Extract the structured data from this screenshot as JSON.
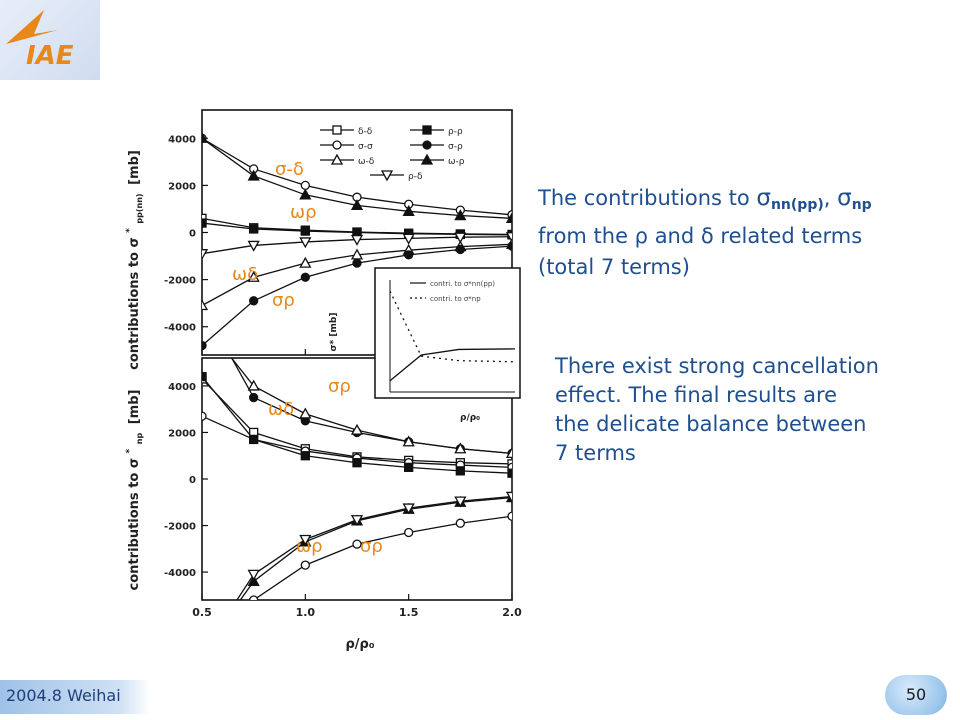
{
  "logo": {
    "text": "IAE",
    "brand_color": "#e8871a"
  },
  "figure": {
    "top_panel": {
      "ylabel_prefix": "contributions to σ",
      "ylabel_sup": "*",
      "ylabel_sub": "pp(nn)",
      "ylabel_unit": "[mb]",
      "yticks": [
        "4000",
        "2000",
        "0",
        "-2000",
        "-4000"
      ]
    },
    "bottom_panel": {
      "ylabel_prefix": "contributions to σ",
      "ylabel_sup": "*",
      "ylabel_sub": "np",
      "ylabel_unit": "[mb]",
      "yticks": [
        "4000",
        "2000",
        "0",
        "-2000",
        "-4000"
      ]
    },
    "xticks": [
      "0.5",
      "1.0",
      "1.5",
      "2.0"
    ],
    "xlabel": "ρ/ρ₀",
    "legend": [
      {
        "label": "δ-δ",
        "marker": "square-open"
      },
      {
        "label": "ρ-ρ",
        "marker": "square-filled"
      },
      {
        "label": "σ-σ",
        "marker": "circle-open"
      },
      {
        "label": "σ-ρ",
        "marker": "circle-filled"
      },
      {
        "label": "ω-δ",
        "marker": "triangle-open"
      },
      {
        "label": "ω-ρ",
        "marker": "triangle-filled"
      },
      {
        "label": "ρ-δ",
        "marker": "triangle-down-open"
      }
    ],
    "annotations": {
      "top_sd": "σ-δ",
      "top_wr": "ωρ",
      "top_wd": "ωδ",
      "top_sr": "σρ",
      "bot_sr": "σρ",
      "bot_wd": "ωδ",
      "bot_wr2": "ωρ",
      "bot_sr2": "σρ"
    },
    "inset": {
      "ylabel": "σ* [mb]",
      "legend1": "contri. to σ*nn(pp)",
      "legend2": "contri. to σ*np",
      "xlabel": "ρ/ρ₀"
    }
  },
  "chart_data": {
    "type": "line",
    "x": [
      0.5,
      0.75,
      1.0,
      1.25,
      1.5,
      1.75,
      2.0
    ],
    "xlabel": "ρ/ρ₀",
    "xlim": [
      0.5,
      2.0
    ],
    "panels": [
      {
        "ylabel": "contributions to σ*pp(nn) [mb]",
        "ylim": [
          -5200,
          5200
        ],
        "series": [
          {
            "name": "σ-σ",
            "values": [
              4000,
              2700,
              2000,
              1500,
              1200,
              950,
              750
            ]
          },
          {
            "name": "ω-ρ",
            "values": [
              4000,
              2400,
              1600,
              1150,
              900,
              720,
              600
            ]
          },
          {
            "name": "δ-δ",
            "values": [
              600,
              200,
              100,
              20,
              -30,
              -60,
              -80
            ]
          },
          {
            "name": "ρ-ρ",
            "values": [
              400,
              150,
              60,
              0,
              -50,
              -80,
              -100
            ]
          },
          {
            "name": "ρ-δ",
            "values": [
              -900,
              -550,
              -400,
              -300,
              -250,
              -200,
              -180
            ]
          },
          {
            "name": "ω-δ",
            "values": [
              -3100,
              -1900,
              -1300,
              -950,
              -750,
              -600,
              -500
            ]
          },
          {
            "name": "σ-ρ",
            "values": [
              -4800,
              -2900,
              -1900,
              -1300,
              -950,
              -720,
              -580
            ]
          }
        ]
      },
      {
        "ylabel": "contributions to σ*np [mb]",
        "ylim": [
          -5200,
          5200
        ],
        "series": [
          {
            "name": "σ-ρ",
            "values": [
              7500,
              3500,
              2500,
              2000,
              1600,
              1300,
              1100
            ]
          },
          {
            "name": "ω-δ",
            "values": [
              6800,
              4000,
              2800,
              2100,
              1600,
              1300,
              1100
            ]
          },
          {
            "name": "δ-δ",
            "values": [
              4300,
              2000,
              1300,
              950,
              800,
              700,
              650
            ]
          },
          {
            "name": "σ-σ",
            "values": [
              2700,
              1700,
              1200,
              900,
              700,
              600,
              500
            ]
          },
          {
            "name": "ρ-ρ",
            "values": [
              4400,
              1700,
              1000,
              700,
              500,
              350,
              250
            ]
          },
          {
            "name": "ω-ρ",
            "values": [
              -7500,
              -4400,
              -2700,
              -1800,
              -1300,
              -1000,
              -800
            ]
          },
          {
            "name": "ρ-δ",
            "values": [
              -7500,
              -4100,
              -2600,
              -1750,
              -1250,
              -950,
              -750
            ]
          },
          {
            "name": "σ-ρ (neg)",
            "values": [
              -8000,
              -5200,
              -3700,
              -2800,
              -2300,
              -1900,
              -1600
            ]
          }
        ]
      }
    ],
    "inset": {
      "series": [
        {
          "name": "contri. to σ*nn(pp)",
          "values": [
            -200,
            30,
            80,
            85
          ]
        },
        {
          "name": "contri. to σ*np",
          "values": [
            600,
            20,
            -20,
            -30
          ]
        }
      ]
    }
  },
  "text1": {
    "line1_prefix": "The contributions to ",
    "sigma1": "σ",
    "sub1": "nn(pp)",
    "comma": ", ",
    "sigma2": "σ",
    "sub2": "np",
    "line2": "from the ρ and δ related terms",
    "line3": "(total 7 terms)"
  },
  "text2": {
    "body": "There exist strong cancellation\n effect. The final results are\nthe delicate balance between\n7 terms"
  },
  "footer": {
    "label": "2004.8 Weihai"
  },
  "page_number": "50"
}
